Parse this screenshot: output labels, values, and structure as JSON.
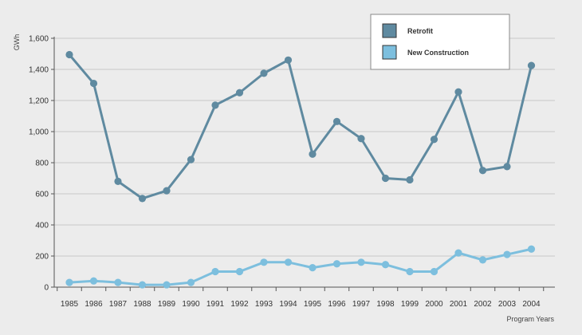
{
  "chart_data": {
    "type": "line",
    "title": "",
    "xlabel": "Program Years",
    "ylabel": "GWh",
    "ylim": [
      0,
      1600
    ],
    "yticks": [
      "0",
      "200",
      "400",
      "600",
      "800",
      "1,000",
      "1,200",
      "1,400",
      "1,600"
    ],
    "categories": [
      "1985",
      "1986",
      "1987",
      "1988",
      "1989",
      "1990",
      "1991",
      "1992",
      "1993",
      "1994",
      "1995",
      "1996",
      "1997",
      "1998",
      "1999",
      "2000",
      "2001",
      "2002",
      "2003",
      "2004"
    ],
    "legend_position": "top-right",
    "series": [
      {
        "name": "Retrofit",
        "color": "#5f8aa0",
        "values": [
          1495,
          1310,
          680,
          570,
          620,
          820,
          1170,
          1250,
          1375,
          1460,
          855,
          1065,
          955,
          700,
          690,
          950,
          1255,
          750,
          775,
          1425
        ]
      },
      {
        "name": "New Construction",
        "color": "#7dbfde",
        "values": [
          30,
          40,
          30,
          15,
          15,
          30,
          100,
          100,
          160,
          160,
          125,
          150,
          160,
          145,
          100,
          100,
          220,
          175,
          210,
          245
        ]
      }
    ]
  }
}
